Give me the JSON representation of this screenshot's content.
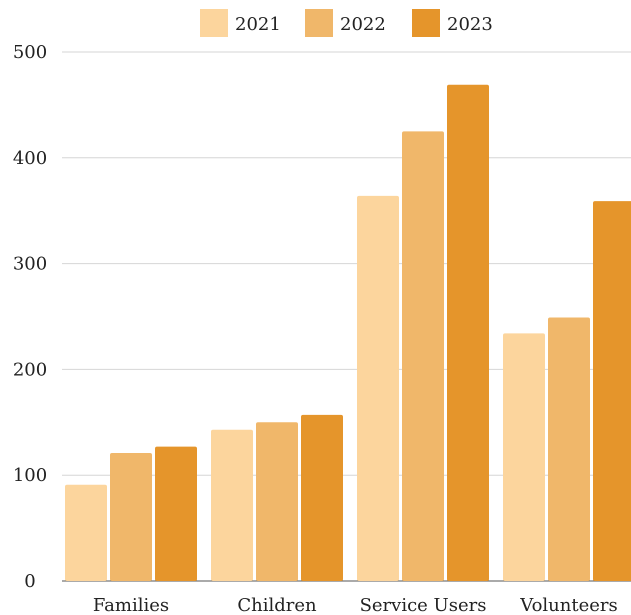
{
  "chart_data": {
    "type": "bar",
    "categories": [
      "Families",
      "Children",
      "Service Users",
      "Volunteers"
    ],
    "series": [
      {
        "name": "2021",
        "color": "#fcd59d",
        "values": [
          91,
          143,
          364,
          234
        ]
      },
      {
        "name": "2022",
        "color": "#f0b76a",
        "values": [
          121,
          150,
          425,
          249
        ]
      },
      {
        "name": "2023",
        "color": "#e5952b",
        "values": [
          127,
          157,
          469,
          359
        ]
      }
    ],
    "ylim": [
      0,
      500
    ],
    "yticks": [
      "0",
      "100",
      "200",
      "300",
      "400",
      "500"
    ],
    "grid": true,
    "legend_position": "top-center",
    "title": "",
    "xlabel": "",
    "ylabel": ""
  }
}
